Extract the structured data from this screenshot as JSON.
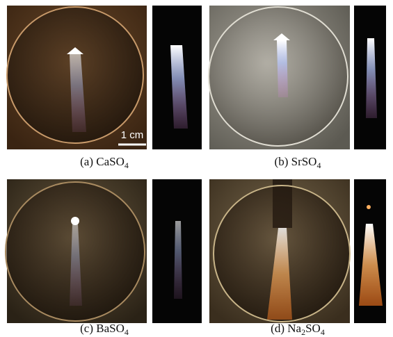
{
  "panels": [
    {
      "label": "(a)",
      "formula": [
        "CaSO",
        "4"
      ],
      "scale_bar": "1 cm"
    },
    {
      "label": "(b)",
      "formula": [
        "SrSO",
        "4"
      ]
    },
    {
      "label": "(c)",
      "formula": [
        "BaSO",
        "4"
      ]
    },
    {
      "label": "(d)",
      "formula": [
        "Na",
        "2",
        "SO",
        "4"
      ]
    }
  ]
}
